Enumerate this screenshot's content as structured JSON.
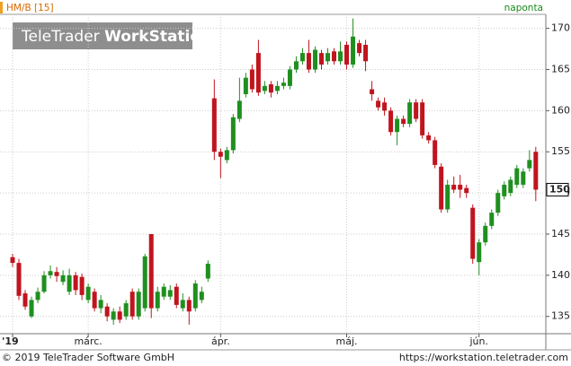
{
  "chart_data": {
    "type": "candlestick",
    "title": "HM/B [15]",
    "interval": "naponta",
    "watermark": [
      "TeleTrader",
      "WorkStation"
    ],
    "copyright": "© 2019 TeleTrader Software GmbH",
    "url": "https://workstation.teletrader.com",
    "up_color": "#1f8f1f",
    "down_color": "#c0141e",
    "grid": true,
    "ylim": [
      132.9,
      171.7
    ],
    "yticks": [
      135,
      140,
      145,
      150,
      155,
      160,
      165,
      170
    ],
    "last_price": {
      "value": 150.4,
      "label": "150"
    },
    "categories": [
      "'19",
      null,
      null,
      null,
      null,
      null,
      null,
      null,
      null,
      null,
      null,
      null,
      "márc.",
      null,
      null,
      null,
      null,
      null,
      null,
      null,
      null,
      null,
      null,
      null,
      null,
      null,
      null,
      null,
      null,
      null,
      null,
      null,
      null,
      "ápr.",
      null,
      null,
      null,
      null,
      null,
      null,
      null,
      null,
      null,
      null,
      null,
      null,
      null,
      null,
      null,
      null,
      null,
      null,
      null,
      "máj.",
      null,
      null,
      null,
      null,
      null,
      null,
      null,
      null,
      null,
      null,
      null,
      null,
      null,
      null,
      null,
      null,
      null,
      null,
      null,
      null,
      "jún.",
      null,
      null,
      null,
      null,
      null,
      null,
      null,
      null,
      null
    ],
    "open": [
      142.2,
      141.5,
      137.8,
      135.0,
      137.0,
      138.0,
      140.0,
      140.4,
      139.2,
      138.0,
      140.0,
      139.8,
      137.0,
      138.0,
      136.0,
      136.2,
      134.6,
      135.6,
      135.0,
      138.0,
      135.0,
      136.0,
      145.0,
      136.0,
      137.4,
      137.4,
      138.6,
      136.0,
      137.0,
      136.0,
      137.0,
      139.6,
      161.5,
      155.0,
      154.0,
      155.2,
      159.0,
      162.0,
      165.0,
      167.0,
      162.4,
      163.2,
      162.4,
      163.0,
      163.0,
      165.0,
      166.0,
      167.0,
      165.0,
      167.0,
      166.0,
      167.2,
      166.0,
      168.0,
      165.6,
      168.2,
      168.0,
      162.6,
      161.2,
      161.0,
      160.0,
      157.4,
      159.0,
      158.4,
      161.0,
      161.0,
      157.0,
      156.4,
      153.2,
      148.0,
      151.0,
      151.0,
      150.6,
      148.2,
      141.6,
      144.0,
      146.0,
      147.6,
      149.6,
      150.0,
      151.0,
      151.0,
      153.0,
      155.0
    ],
    "high": [
      142.6,
      142.0,
      138.2,
      137.4,
      138.5,
      140.5,
      141.2,
      141.0,
      140.6,
      140.8,
      140.4,
      140.2,
      139.0,
      138.4,
      137.6,
      136.6,
      136.0,
      136.2,
      137.0,
      138.4,
      138.4,
      142.6,
      145.0,
      138.6,
      139.0,
      138.8,
      139.0,
      137.8,
      137.4,
      139.4,
      138.6,
      141.8,
      163.8,
      155.4,
      155.6,
      159.6,
      164.0,
      164.6,
      165.6,
      168.6,
      163.6,
      163.6,
      163.6,
      164.0,
      165.4,
      166.6,
      167.6,
      168.6,
      167.8,
      167.4,
      167.6,
      167.6,
      168.4,
      168.4,
      171.2,
      168.6,
      168.6,
      163.6,
      161.6,
      161.6,
      160.4,
      159.4,
      159.4,
      161.4,
      161.4,
      161.4,
      157.4,
      156.8,
      153.6,
      151.6,
      152.0,
      152.2,
      151.0,
      148.6,
      144.4,
      146.4,
      148.0,
      150.4,
      151.4,
      152.0,
      153.4,
      153.0,
      155.2,
      155.6
    ],
    "low": [
      141.0,
      137.0,
      135.8,
      134.8,
      136.6,
      137.8,
      139.6,
      139.2,
      138.8,
      137.6,
      137.6,
      137.0,
      136.6,
      135.6,
      135.4,
      134.4,
      134.0,
      134.2,
      134.6,
      134.6,
      134.6,
      135.6,
      134.8,
      135.6,
      137.0,
      137.0,
      136.0,
      135.6,
      134.0,
      135.6,
      136.6,
      139.2,
      154.0,
      151.8,
      153.6,
      154.8,
      158.6,
      161.6,
      162.2,
      161.8,
      162.0,
      161.6,
      162.0,
      162.6,
      162.6,
      164.6,
      165.6,
      164.6,
      164.6,
      165.0,
      165.6,
      165.6,
      165.6,
      165.0,
      165.2,
      166.6,
      164.8,
      161.2,
      160.0,
      159.4,
      157.0,
      155.8,
      158.0,
      158.0,
      158.6,
      156.6,
      156.0,
      153.0,
      147.6,
      147.6,
      150.0,
      149.4,
      149.4,
      141.4,
      140.0,
      143.6,
      145.6,
      147.2,
      149.2,
      149.6,
      150.6,
      150.6,
      152.6,
      149.0
    ],
    "close": [
      141.5,
      137.5,
      136.2,
      137.0,
      138.0,
      140.0,
      140.5,
      139.9,
      140.0,
      140.0,
      138.2,
      137.6,
      138.6,
      136.0,
      137.0,
      135.0,
      135.6,
      134.6,
      136.6,
      135.0,
      138.0,
      142.3,
      136.0,
      138.0,
      138.6,
      138.2,
      136.4,
      137.0,
      135.6,
      139.0,
      138.0,
      141.4,
      155.0,
      154.4,
      155.2,
      159.2,
      161.2,
      164.0,
      162.6,
      162.2,
      163.0,
      162.2,
      163.0,
      163.4,
      165.0,
      166.0,
      167.0,
      165.0,
      167.4,
      165.6,
      167.0,
      166.0,
      167.2,
      165.6,
      169.0,
      167.0,
      166.0,
      162.0,
      160.4,
      160.0,
      157.4,
      159.0,
      158.4,
      161.0,
      159.0,
      157.0,
      156.4,
      153.4,
      148.0,
      151.0,
      150.4,
      150.4,
      150.0,
      142.0,
      144.0,
      146.0,
      147.6,
      150.0,
      151.0,
      151.6,
      153.0,
      152.6,
      154.0,
      150.4
    ]
  }
}
